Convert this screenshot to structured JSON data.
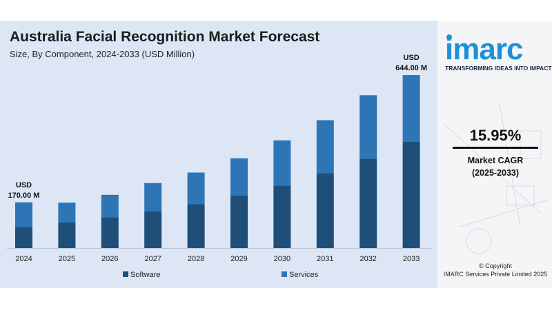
{
  "header": {
    "title": "Australia Facial Recognition Market Forecast",
    "subtitle": "Size, By Component, 2024-2033 (USD Million)"
  },
  "brand": {
    "logo_text": "imarc",
    "tagline": "TRANSFORMING IDEAS INTO IMPACT",
    "accent_color": "#1e90d6"
  },
  "cagr": {
    "value": "15.95%",
    "label_line1": "Market CAGR",
    "label_line2": "(2025-2033)"
  },
  "footer": {
    "copyright": "© Copyright",
    "company": "IMARC Services Private Limited 2025"
  },
  "chart_data": {
    "type": "bar",
    "stacked": true,
    "title": "Australia Facial Recognition Market Forecast",
    "subtitle": "Size, By Component, 2024-2033 (USD Million)",
    "categories": [
      "2024",
      "2025",
      "2026",
      "2027",
      "2028",
      "2029",
      "2030",
      "2031",
      "2032",
      "2033"
    ],
    "series": [
      {
        "name": "Software",
        "color": "#1f4e79",
        "values": [
          79,
          95,
          114,
          137,
          163,
          195,
          233,
          279,
          333,
          397
        ]
      },
      {
        "name": "Services",
        "color": "#2e75b6",
        "values": [
          91,
          74,
          84,
          105,
          118,
          139,
          168,
          197,
          236,
          247
        ]
      }
    ],
    "totals": [
      170,
      169,
      198,
      242,
      281,
      334,
      401,
      476,
      569,
      644
    ],
    "ylim": [
      0,
      680
    ],
    "grid": false,
    "legend_position": "bottom",
    "annotations": [
      {
        "category": "2024",
        "line1": "USD",
        "line2": "170.00 M"
      },
      {
        "category": "2033",
        "line1": "USD",
        "line2": "644.00 M"
      }
    ]
  }
}
